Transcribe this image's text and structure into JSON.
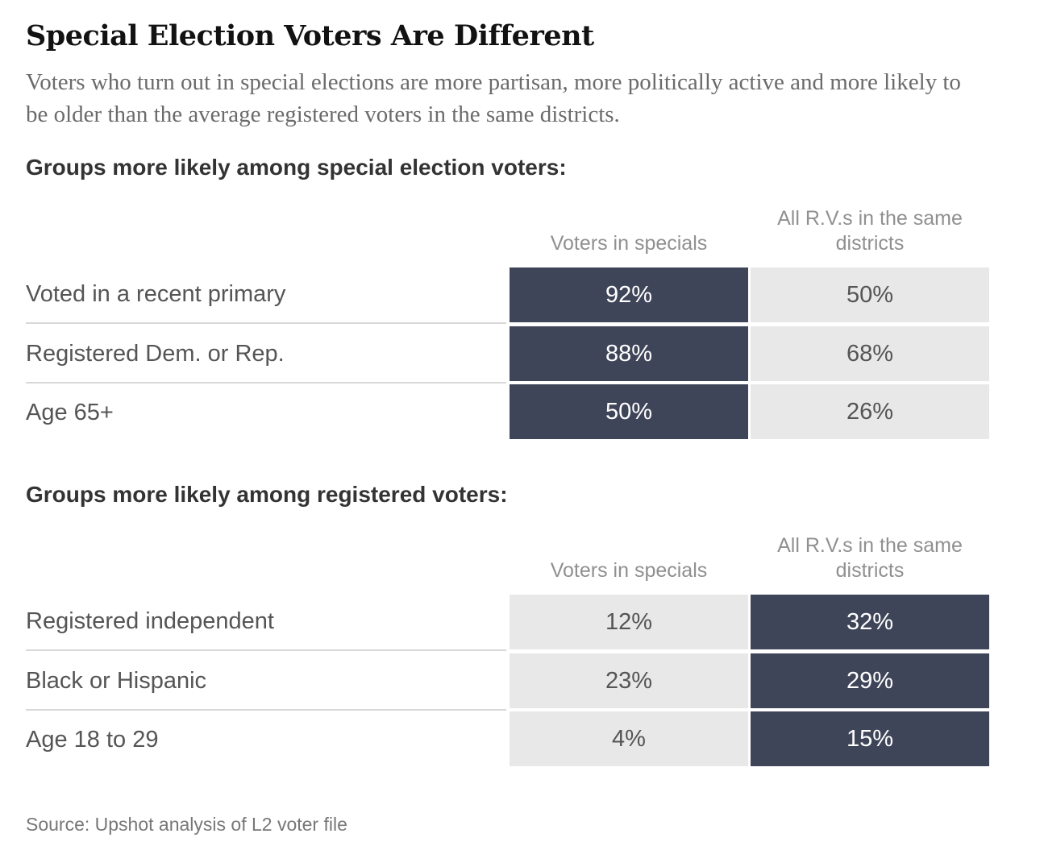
{
  "title": "Special Election Voters Are Different",
  "subtitle": "Voters who turn out in special elections are more partisan, more politically active and more likely to be older than the average registered voters in the same districts.",
  "source": "Source: Upshot analysis of L2 voter file",
  "chart_data": [
    {
      "type": "table",
      "title": "Groups more likely among special election voters:",
      "columns": [
        "Voters in specials",
        "All R.V.s in the same districts"
      ],
      "rows": [
        {
          "label": "Voted in a recent primary",
          "values": [
            "92%",
            "50%"
          ],
          "highlight": 0
        },
        {
          "label": "Registered Dem. or Rep.",
          "values": [
            "88%",
            "68%"
          ],
          "highlight": 0
        },
        {
          "label": "Age 65+",
          "values": [
            "50%",
            "26%"
          ],
          "highlight": 0
        }
      ]
    },
    {
      "type": "table",
      "title": "Groups more likely among registered voters:",
      "columns": [
        "Voters in specials",
        "All R.V.s in the same districts"
      ],
      "rows": [
        {
          "label": "Registered independent",
          "values": [
            "12%",
            "32%"
          ],
          "highlight": 1
        },
        {
          "label": "Black or Hispanic",
          "values": [
            "23%",
            "29%"
          ],
          "highlight": 1
        },
        {
          "label": "Age 18 to 29",
          "values": [
            "4%",
            "15%"
          ],
          "highlight": 1
        }
      ]
    }
  ],
  "colors": {
    "highlight": "#3f4559",
    "base": "#e8e8e8"
  }
}
